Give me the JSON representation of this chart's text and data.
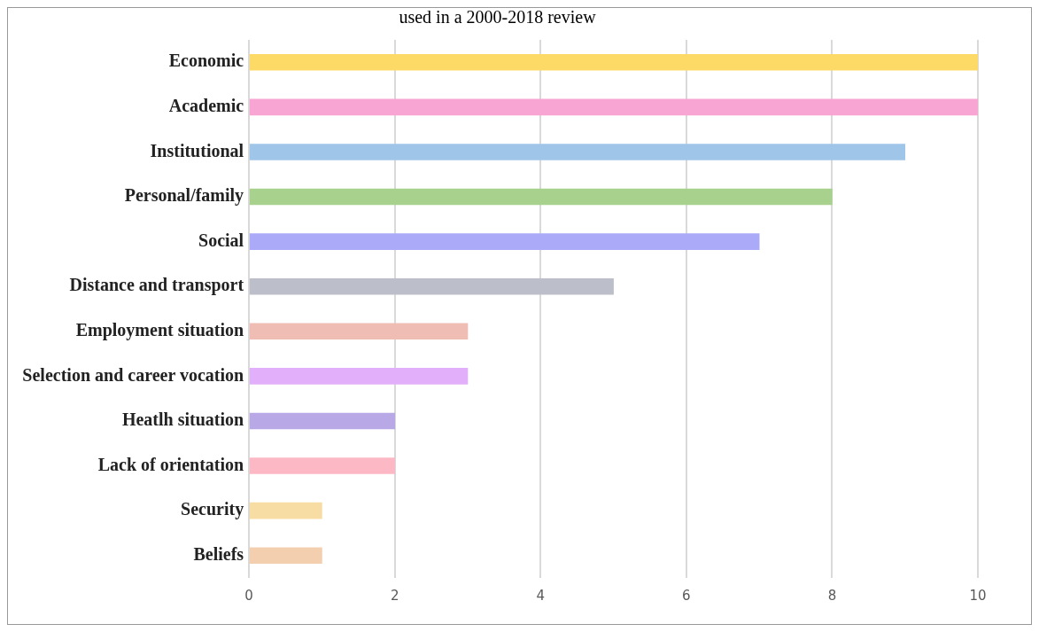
{
  "chart_data": {
    "type": "bar",
    "orientation": "horizontal",
    "title": "used in a 2000-2018 review",
    "categories": [
      "Economic",
      "Academic",
      "Institutional",
      "Personal/family",
      "Social",
      "Distance and transport",
      "Employment situation",
      "Selection and career vocation",
      "Heatlh situation",
      "Lack of orientation",
      "Security",
      "Beliefs"
    ],
    "values": [
      10,
      10,
      9,
      8,
      7,
      5,
      3,
      3,
      2,
      2,
      1,
      1
    ],
    "colors": [
      "#fdd966",
      "#f8a5d3",
      "#9fc5e8",
      "#a9d18e",
      "#aaaaf9",
      "#bcbfc9",
      "#f0bdb5",
      "#e2b0fa",
      "#b8a9e6",
      "#fdb8c5",
      "#f7dda4",
      "#f3cfaf"
    ],
    "xlim": [
      0,
      10
    ],
    "xticks": [
      0,
      2,
      4,
      6,
      8,
      10
    ],
    "grid": "x",
    "legend": false
  }
}
